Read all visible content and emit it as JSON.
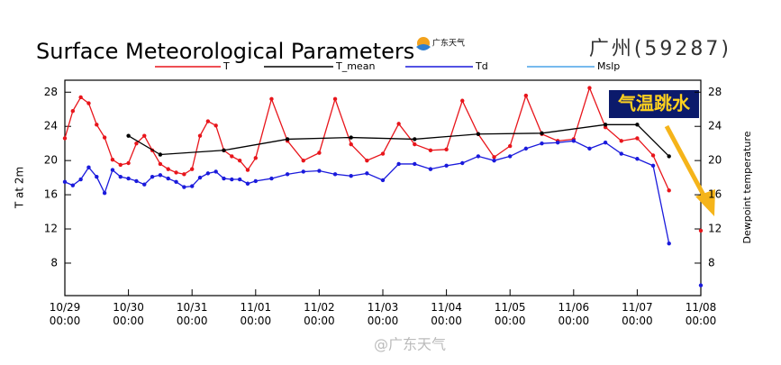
{
  "chart_data": {
    "type": "line",
    "title": "Surface Meteorological Parameters",
    "subtitle": "广州(59287)",
    "logo_text": "广东天气",
    "annotation": "气温跳水",
    "watermark": "@广东天气",
    "ylabel": "T at 2m",
    "y2label": "Dewpoint temperature",
    "xlim": [
      "10/29 00:00",
      "11/08 00:00"
    ],
    "xticks": [
      "10/29 00:00",
      "10/30 00:00",
      "10/31 00:00",
      "11/01 00:00",
      "11/02 00:00",
      "11/03 00:00",
      "11/04 00:00",
      "11/05 00:00",
      "11/06 00:00",
      "11/07 00:00",
      "11/08 00:00"
    ],
    "ylim": [
      4.2,
      29.4
    ],
    "yticks": [
      8,
      12,
      16,
      20,
      24,
      28
    ],
    "y2lim": [
      4.2,
      29.4
    ],
    "y2ticks": [
      8,
      12,
      16,
      20,
      24,
      28
    ],
    "x": [
      "10/29 00:00",
      "10/29 03:00",
      "10/29 06:00",
      "10/29 09:00",
      "10/29 12:00",
      "10/29 15:00",
      "10/29 18:00",
      "10/29 21:00",
      "10/30 00:00",
      "10/30 03:00",
      "10/30 06:00",
      "10/30 09:00",
      "10/30 12:00",
      "10/30 15:00",
      "10/30 18:00",
      "10/30 21:00",
      "10/31 00:00",
      "10/31 03:00",
      "10/31 06:00",
      "10/31 09:00",
      "10/31 12:00",
      "10/31 15:00",
      "10/31 18:00",
      "10/31 21:00",
      "11/01 00:00",
      "11/01 06:00",
      "11/01 12:00",
      "11/01 18:00",
      "11/02 00:00",
      "11/02 06:00",
      "11/02 12:00",
      "11/02 18:00",
      "11/03 00:00",
      "11/03 06:00",
      "11/03 12:00",
      "11/03 18:00",
      "11/04 00:00",
      "11/04 06:00",
      "11/04 12:00",
      "11/04 18:00",
      "11/05 00:00",
      "11/05 06:00",
      "11/05 12:00",
      "11/05 18:00",
      "11/06 00:00",
      "11/06 06:00",
      "11/06 12:00",
      "11/06 18:00",
      "11/07 00:00",
      "11/07 06:00",
      "11/07 12:00",
      "11/07 18:00",
      "11/08 00:00"
    ],
    "series": [
      {
        "name": "T",
        "color": "#e8151b",
        "values": [
          22.6,
          25.8,
          27.4,
          26.7,
          24.2,
          22.7,
          20.1,
          19.5,
          19.7,
          22.0,
          22.9,
          21.2,
          19.6,
          19.0,
          18.6,
          18.4,
          19.0,
          22.9,
          24.6,
          24.1,
          21.2,
          20.5,
          20.0,
          18.9,
          20.3,
          27.2,
          22.3,
          20.0,
          20.9,
          27.2,
          21.9,
          20.0,
          20.8,
          24.3,
          21.9,
          21.2,
          21.3,
          27.0,
          23.1,
          20.4,
          21.7,
          27.6,
          23.1,
          22.3,
          22.5,
          28.5,
          23.9,
          22.3,
          22.6,
          20.6,
          16.5,
          null,
          11.8
        ]
      },
      {
        "name": "T_mean",
        "color": "#000000",
        "x": [
          "10/30 00:00",
          "10/30 12:00",
          "10/31 12:00",
          "11/01 12:00",
          "11/02 12:00",
          "11/03 12:00",
          "11/04 12:00",
          "11/05 12:00",
          "11/06 12:00",
          "11/07 00:00",
          "11/07 12:00"
        ],
        "values": [
          22.9,
          20.7,
          21.2,
          22.5,
          22.7,
          22.5,
          23.1,
          23.2,
          24.2,
          24.2,
          20.5
        ]
      },
      {
        "name": "Td",
        "color": "#1a1adc",
        "axis": "y2",
        "values": [
          17.5,
          17.1,
          17.8,
          19.2,
          18.1,
          16.2,
          18.9,
          18.1,
          17.9,
          17.6,
          17.2,
          18.1,
          18.3,
          17.9,
          17.5,
          16.9,
          17.0,
          18.0,
          18.5,
          18.7,
          17.9,
          17.8,
          17.8,
          17.3,
          17.6,
          17.9,
          18.4,
          18.7,
          18.8,
          18.4,
          18.2,
          18.5,
          17.7,
          19.6,
          19.6,
          19.0,
          19.4,
          19.7,
          20.5,
          20.0,
          20.5,
          21.4,
          22.0,
          22.1,
          22.3,
          21.4,
          22.1,
          20.8,
          20.2,
          19.4,
          10.3,
          null,
          5.4
        ]
      },
      {
        "name": "Mslp",
        "color": "#4aa3e8"
      }
    ]
  }
}
